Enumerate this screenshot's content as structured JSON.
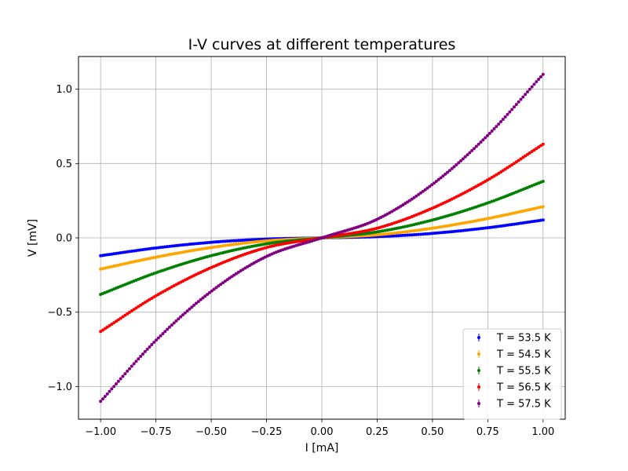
{
  "chart_data": {
    "type": "scatter",
    "title": "I-V curves at different temperatures",
    "xlabel": "I [mA]",
    "ylabel": "V [mV]",
    "xlim": [
      -1.1,
      1.1
    ],
    "ylim": [
      -1.22,
      1.22
    ],
    "xticks": [
      -1.0,
      -0.75,
      -0.5,
      -0.25,
      0.0,
      0.25,
      0.5,
      0.75,
      1.0
    ],
    "xtick_labels": [
      "−1.00",
      "−0.75",
      "−0.50",
      "−0.25",
      "0.00",
      "0.25",
      "0.50",
      "0.75",
      "1.00"
    ],
    "yticks": [
      -1.0,
      -0.5,
      0.0,
      0.5,
      1.0
    ],
    "ytick_labels": [
      "−1.0",
      "−0.5",
      "0.0",
      "0.5",
      "1.0"
    ],
    "grid": true,
    "legend_position": "lower-right",
    "x_range": [
      -1.0,
      1.0
    ],
    "points_per_series": 200,
    "series": [
      {
        "name": "T = 53.5 K",
        "color": "#0000ff",
        "x": [
          -1.0,
          -0.75,
          -0.5,
          -0.25,
          0.0,
          0.25,
          0.5,
          0.75,
          1.0
        ],
        "y": [
          -0.12,
          -0.068,
          -0.03,
          -0.008,
          0.0,
          0.008,
          0.03,
          0.068,
          0.12
        ]
      },
      {
        "name": "T = 54.5 K",
        "color": "#ffa500",
        "x": [
          -1.0,
          -0.75,
          -0.5,
          -0.25,
          0.0,
          0.25,
          0.5,
          0.75,
          1.0
        ],
        "y": [
          -0.21,
          -0.13,
          -0.065,
          -0.02,
          0.0,
          0.02,
          0.065,
          0.13,
          0.21
        ]
      },
      {
        "name": "T = 55.5 K",
        "color": "#008000",
        "x": [
          -1.0,
          -0.75,
          -0.5,
          -0.25,
          0.0,
          0.25,
          0.5,
          0.75,
          1.0
        ],
        "y": [
          -0.38,
          -0.235,
          -0.12,
          -0.04,
          0.0,
          0.04,
          0.12,
          0.235,
          0.38
        ]
      },
      {
        "name": "T = 56.5 K",
        "color": "#ff0000",
        "x": [
          -1.0,
          -0.75,
          -0.5,
          -0.25,
          0.0,
          0.25,
          0.5,
          0.75,
          1.0
        ],
        "y": [
          -0.63,
          -0.39,
          -0.2,
          -0.065,
          0.0,
          0.065,
          0.2,
          0.39,
          0.63
        ]
      },
      {
        "name": "T = 57.5 K",
        "color": "#800080",
        "x": [
          -1.0,
          -0.75,
          -0.5,
          -0.25,
          0.0,
          0.25,
          0.5,
          0.75,
          1.0
        ],
        "y": [
          -1.1,
          -0.69,
          -0.36,
          -0.125,
          0.0,
          0.125,
          0.36,
          0.69,
          1.1
        ]
      }
    ]
  }
}
